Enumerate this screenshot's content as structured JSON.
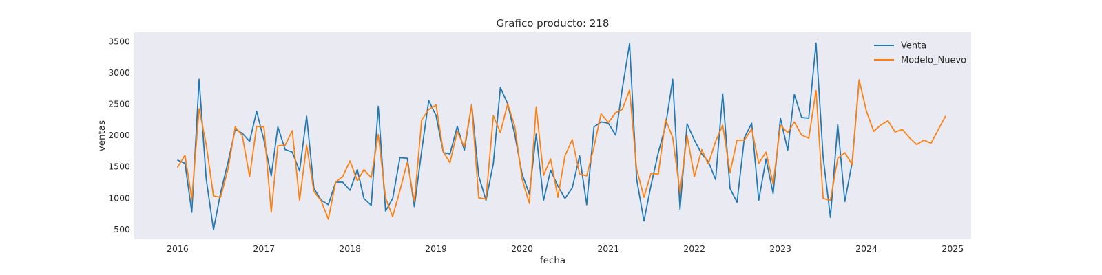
{
  "chart_data": {
    "type": "line",
    "title": "Grafico producto: 218",
    "xlabel": "fecha",
    "ylabel": "ventas",
    "xlim": [
      "2015-07-01",
      "2025-03-20"
    ],
    "ylim": [
      340,
      3640
    ],
    "yticks": [
      500,
      1000,
      1500,
      2000,
      2500,
      3000,
      3500
    ],
    "xticks": [
      "2016",
      "2017",
      "2018",
      "2019",
      "2020",
      "2021",
      "2022",
      "2023",
      "2024",
      "2025"
    ],
    "grid": false,
    "legend_position": "top-right",
    "background": "#eaeaf2",
    "series": [
      {
        "name": "Venta",
        "color": "#1f77b4",
        "x": [
          "2016-01",
          "2016-02",
          "2016-03",
          "2016-04",
          "2016-05",
          "2016-06",
          "2016-07",
          "2016-08",
          "2016-09",
          "2016-10",
          "2016-11",
          "2016-12",
          "2017-01",
          "2017-02",
          "2017-03",
          "2017-04",
          "2017-05",
          "2017-06",
          "2017-07",
          "2017-08",
          "2017-09",
          "2017-10",
          "2017-11",
          "2017-12",
          "2018-01",
          "2018-02",
          "2018-03",
          "2018-04",
          "2018-05",
          "2018-06",
          "2018-07",
          "2018-08",
          "2018-09",
          "2018-10",
          "2018-11",
          "2018-12",
          "2019-01",
          "2019-02",
          "2019-03",
          "2019-04",
          "2019-05",
          "2019-06",
          "2019-07",
          "2019-08",
          "2019-09",
          "2019-10",
          "2019-11",
          "2019-12",
          "2020-01",
          "2020-02",
          "2020-03",
          "2020-04",
          "2020-05",
          "2020-06",
          "2020-07",
          "2020-08",
          "2020-09",
          "2020-10",
          "2020-11",
          "2020-12",
          "2021-01",
          "2021-02",
          "2021-03",
          "2021-04",
          "2021-05",
          "2021-06",
          "2021-07",
          "2021-08",
          "2021-09",
          "2021-10",
          "2021-11",
          "2021-12",
          "2022-01",
          "2022-02",
          "2022-03",
          "2022-04",
          "2022-05",
          "2022-06",
          "2022-07",
          "2022-08",
          "2022-09",
          "2022-10",
          "2022-11",
          "2022-12",
          "2023-01",
          "2023-02",
          "2023-03",
          "2023-04",
          "2023-05",
          "2023-06",
          "2023-07",
          "2023-08",
          "2023-09",
          "2023-10",
          "2023-11",
          "2023-12"
        ],
        "values": [
          1600,
          1550,
          770,
          2890,
          1300,
          490,
          1080,
          1560,
          2090,
          2030,
          1900,
          2380,
          1920,
          1350,
          2130,
          1770,
          1730,
          1430,
          2300,
          1150,
          960,
          890,
          1250,
          1250,
          1120,
          1450,
          990,
          880,
          2460,
          790,
          990,
          1640,
          1630,
          860,
          1750,
          2550,
          2310,
          1720,
          1700,
          2140,
          1760,
          2490,
          1350,
          960,
          1550,
          2760,
          2500,
          2010,
          1380,
          1060,
          2020,
          960,
          1440,
          1190,
          990,
          1160,
          1670,
          890,
          2130,
          2210,
          2190,
          2000,
          2740,
          3460,
          1300,
          630,
          1200,
          1720,
          2150,
          2890,
          820,
          2180,
          1920,
          1700,
          1580,
          1290,
          2660,
          1150,
          930,
          1960,
          2190,
          960,
          1620,
          1070,
          2270,
          1760,
          2650,
          2280,
          2270,
          3470,
          1650,
          690,
          2170,
          940,
          1560,
          2880
        ]
      },
      {
        "name": "Modelo_Nuevo",
        "color": "#ff7f0e",
        "x": [
          "2016-01",
          "2016-02",
          "2016-03",
          "2016-04",
          "2016-05",
          "2016-06",
          "2016-07",
          "2016-08",
          "2016-09",
          "2016-10",
          "2016-11",
          "2016-12",
          "2017-01",
          "2017-02",
          "2017-03",
          "2017-04",
          "2017-05",
          "2017-06",
          "2017-07",
          "2017-08",
          "2017-09",
          "2017-10",
          "2017-11",
          "2017-12",
          "2018-01",
          "2018-02",
          "2018-03",
          "2018-04",
          "2018-05",
          "2018-06",
          "2018-07",
          "2018-08",
          "2018-09",
          "2018-10",
          "2018-11",
          "2018-12",
          "2019-01",
          "2019-02",
          "2019-03",
          "2019-04",
          "2019-05",
          "2019-06",
          "2019-07",
          "2019-08",
          "2019-09",
          "2019-10",
          "2019-11",
          "2019-12",
          "2020-01",
          "2020-02",
          "2020-03",
          "2020-04",
          "2020-05",
          "2020-06",
          "2020-07",
          "2020-08",
          "2020-09",
          "2020-10",
          "2020-11",
          "2020-12",
          "2021-01",
          "2021-02",
          "2021-03",
          "2021-04",
          "2021-05",
          "2021-06",
          "2021-07",
          "2021-08",
          "2021-09",
          "2021-10",
          "2021-11",
          "2021-12",
          "2022-01",
          "2022-02",
          "2022-03",
          "2022-04",
          "2022-05",
          "2022-06",
          "2022-07",
          "2022-08",
          "2022-09",
          "2022-10",
          "2022-11",
          "2022-12",
          "2023-01",
          "2023-02",
          "2023-03",
          "2023-04",
          "2023-05",
          "2023-06",
          "2023-07",
          "2023-08",
          "2023-09",
          "2023-10",
          "2023-11",
          "2023-12",
          "2024-01",
          "2024-02",
          "2024-03",
          "2024-04",
          "2024-05",
          "2024-06",
          "2024-07",
          "2024-08",
          "2024-09",
          "2024-10",
          "2024-11",
          "2024-12"
        ],
        "values": [
          1490,
          1680,
          980,
          2420,
          1850,
          1030,
          1010,
          1450,
          2130,
          1990,
          1340,
          2140,
          2130,
          770,
          1830,
          1840,
          2070,
          960,
          1840,
          1100,
          950,
          660,
          1250,
          1340,
          1590,
          1270,
          1450,
          1320,
          2010,
          1000,
          700,
          1120,
          1570,
          940,
          2240,
          2410,
          2480,
          1730,
          1560,
          2060,
          1810,
          2480,
          1000,
          980,
          2310,
          2040,
          2500,
          2140,
          1300,
          910,
          2450,
          1360,
          1620,
          1010,
          1670,
          1930,
          1380,
          1350,
          1810,
          2340,
          2200,
          2360,
          2410,
          2720,
          1460,
          1010,
          1390,
          1380,
          2250,
          1960,
          1090,
          1990,
          1340,
          1770,
          1540,
          1900,
          2160,
          1400,
          1920,
          1920,
          2100,
          1550,
          1730,
          1220,
          2160,
          2040,
          2210,
          2000,
          1950,
          2710,
          990,
          960,
          1630,
          1720,
          1530,
          2880,
          2380,
          2060,
          2160,
          2230,
          2050,
          2090,
          1960,
          1850,
          1920,
          1870,
          2090,
          2300
        ]
      }
    ]
  }
}
